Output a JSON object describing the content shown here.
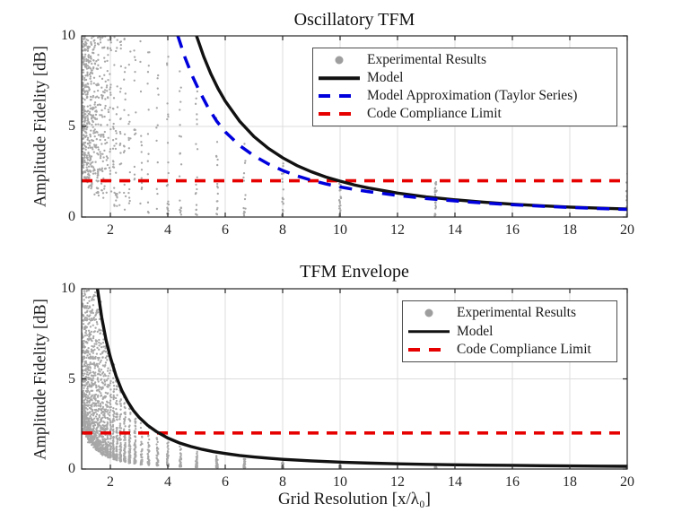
{
  "figure": {
    "background": "#ffffff",
    "scatter_color": "#9e9e9e",
    "grid_color": "#dcdcdc",
    "axis_color": "#262626"
  },
  "chart_data": [
    {
      "type": "scatter",
      "title": "Oscillatory TFM",
      "xlabel": "",
      "ylabel": "Amplitude Fidelity [dB]",
      "xlim": [
        1,
        20
      ],
      "ylim": [
        0,
        10
      ],
      "xticks": [
        2,
        4,
        6,
        8,
        10,
        12,
        14,
        16,
        18,
        20
      ],
      "yticks": [
        0,
        5,
        10
      ],
      "grid": true,
      "legend_position": "upper right",
      "legend": [
        {
          "marker": "dot",
          "color": "#9e9e9e",
          "label": "Experimental Results"
        },
        {
          "marker": "solid",
          "color": "#111111",
          "label": "Model"
        },
        {
          "marker": "dashed",
          "color": "#0000dd",
          "label": "Model Approximation (Taylor Series)"
        },
        {
          "marker": "dashed",
          "color": "#e60000",
          "label": "Code Compliance Limit"
        }
      ],
      "series": [
        {
          "name": "Code Compliance Limit",
          "style": "dashed",
          "dash": "12 9",
          "width": 3.6,
          "color": "#e60000",
          "points": [
            [
              1,
              2
            ],
            [
              20,
              2
            ]
          ]
        },
        {
          "name": "Model",
          "style": "solid",
          "width": 3.4,
          "color": "#111111",
          "points": [
            [
              5,
              10
            ],
            [
              5.25,
              8.86
            ],
            [
              5.5,
              7.9
            ],
            [
              5.75,
              7.09
            ],
            [
              6,
              6.4
            ],
            [
              6.5,
              5.29
            ],
            [
              7,
              4.44
            ],
            [
              7.5,
              3.79
            ],
            [
              8,
              3.27
            ],
            [
              8.5,
              2.84
            ],
            [
              9,
              2.5
            ],
            [
              9.5,
              2.21
            ],
            [
              10,
              1.98
            ],
            [
              10.5,
              1.77
            ],
            [
              11,
              1.6
            ],
            [
              12,
              1.32
            ],
            [
              13,
              1.11
            ],
            [
              14,
              0.95
            ],
            [
              15,
              0.82
            ],
            [
              16,
              0.71
            ],
            [
              17,
              0.62
            ],
            [
              18,
              0.55
            ],
            [
              19,
              0.49
            ],
            [
              20,
              0.44
            ]
          ]
        },
        {
          "name": "Model Approximation (Taylor Series)",
          "style": "dashed",
          "dash": "14 10",
          "width": 3.5,
          "color": "#0000dd",
          "points": [
            [
              4.35,
              10
            ],
            [
              4.6,
              8.8
            ],
            [
              4.85,
              7.8
            ],
            [
              5.1,
              6.95
            ],
            [
              5.4,
              6.05
            ],
            [
              5.7,
              5.3
            ],
            [
              6,
              4.7
            ],
            [
              6.5,
              3.95
            ],
            [
              7,
              3.38
            ],
            [
              7.5,
              2.93
            ],
            [
              8,
              2.57
            ],
            [
              8.5,
              2.27
            ],
            [
              9,
              2.03
            ],
            [
              9.5,
              1.83
            ],
            [
              10,
              1.66
            ],
            [
              10.5,
              1.52
            ],
            [
              11,
              1.4
            ],
            [
              12,
              1.19
            ],
            [
              13,
              1.02
            ],
            [
              14,
              0.89
            ],
            [
              15,
              0.77
            ],
            [
              16,
              0.68
            ],
            [
              17,
              0.6
            ],
            [
              18,
              0.53
            ],
            [
              19,
              0.47
            ],
            [
              20,
              0.42
            ]
          ]
        }
      ],
      "scatter": {
        "name": "Experimental Results",
        "color": "#9e9e9e",
        "seed": 1337,
        "note": "grid resolutions x = 40/n, n = 2..40; columns as [x, ymin, ymax, count, low_bias]",
        "columns": [
          [
            1.0,
            2.5,
            10,
            38,
            1
          ],
          [
            1.03,
            2.37,
            10,
            36,
            1
          ],
          [
            1.05,
            2.27,
            10,
            36,
            1
          ],
          [
            1.08,
            2.14,
            10,
            34,
            1
          ],
          [
            1.11,
            2.03,
            10,
            34,
            1
          ],
          [
            1.14,
            1.92,
            10,
            33,
            1
          ],
          [
            1.18,
            1.8,
            10,
            32,
            1
          ],
          [
            1.21,
            1.71,
            10,
            31,
            1
          ],
          [
            1.25,
            1.6,
            10,
            30,
            1
          ],
          [
            1.29,
            1.5,
            10,
            30,
            1
          ],
          [
            1.33,
            1.41,
            10,
            29,
            1
          ],
          [
            1.38,
            1.31,
            10,
            28,
            1
          ],
          [
            1.43,
            1.22,
            10,
            27,
            1
          ],
          [
            1.48,
            1.14,
            10,
            26,
            1
          ],
          [
            1.54,
            1.05,
            10,
            26,
            1
          ],
          [
            1.6,
            0.98,
            10,
            25,
            1
          ],
          [
            1.67,
            0.9,
            10,
            24,
            1
          ],
          [
            1.74,
            0.83,
            10,
            23,
            1
          ],
          [
            1.82,
            0.75,
            10,
            22,
            1
          ],
          [
            1.9,
            0.69,
            10,
            22,
            1
          ],
          [
            2.0,
            0.63,
            10,
            21,
            1
          ],
          [
            2.11,
            0.56,
            10,
            20,
            1
          ],
          [
            2.22,
            0.51,
            10,
            19,
            1
          ],
          [
            2.35,
            0.45,
            10,
            18,
            1
          ],
          [
            2.5,
            0.4,
            10,
            17,
            1
          ],
          [
            2.67,
            0.35,
            10,
            16,
            1
          ],
          [
            2.86,
            0.31,
            10,
            15,
            1
          ],
          [
            3.08,
            0.26,
            10,
            14,
            1
          ],
          [
            3.33,
            0.23,
            10,
            13,
            1
          ],
          [
            3.64,
            0.19,
            10,
            12,
            1
          ],
          [
            4.0,
            0.16,
            9.3,
            22,
            1.5
          ],
          [
            4.44,
            0.13,
            8.4,
            20,
            1.5
          ],
          [
            5.0,
            0.1,
            7.5,
            18,
            1.5
          ],
          [
            5.71,
            0.08,
            5.6,
            16,
            1.5
          ],
          [
            6.67,
            0.06,
            5.1,
            15,
            1.6
          ],
          [
            8.0,
            0.05,
            3.1,
            20,
            1.8
          ],
          [
            10.0,
            0.04,
            2.2,
            22,
            1.3
          ],
          [
            13.33,
            0.03,
            2.35,
            26,
            1.2
          ],
          [
            20.0,
            0.02,
            2.4,
            26,
            1.2
          ]
        ]
      },
      "compliance_limit": 2
    },
    {
      "type": "scatter",
      "title": "TFM Envelope",
      "xlabel": "Grid Resolution [x/λ₀]",
      "ylabel": "Amplitude Fidelity [dB]",
      "xlim": [
        1,
        20
      ],
      "ylim": [
        0,
        10
      ],
      "xticks": [
        2,
        4,
        6,
        8,
        10,
        12,
        14,
        16,
        18,
        20
      ],
      "yticks": [
        0,
        5,
        10
      ],
      "grid": true,
      "legend_position": "upper right",
      "legend": [
        {
          "marker": "dot",
          "color": "#9e9e9e",
          "label": "Experimental Results"
        },
        {
          "marker": "solid",
          "color": "#111111",
          "label": "Model"
        },
        {
          "marker": "dashed",
          "color": "#e60000",
          "label": "Code Compliance Limit"
        }
      ],
      "series": [
        {
          "name": "Code Compliance Limit",
          "style": "dashed",
          "dash": "12 9",
          "width": 3.6,
          "color": "#e60000",
          "points": [
            [
              1,
              2
            ],
            [
              20,
              2
            ]
          ]
        },
        {
          "name": "Model",
          "style": "solid",
          "width": 3.4,
          "color": "#111111",
          "points": [
            [
              1.55,
              10
            ],
            [
              1.7,
              8.4
            ],
            [
              1.85,
              7.15
            ],
            [
              2,
              6.2
            ],
            [
              2.2,
              5.15
            ],
            [
              2.4,
              4.35
            ],
            [
              2.6,
              3.75
            ],
            [
              2.8,
              3.25
            ],
            [
              3,
              2.87
            ],
            [
              3.3,
              2.42
            ],
            [
              3.6,
              2.08
            ],
            [
              4,
              1.72
            ],
            [
              4.4,
              1.45
            ],
            [
              4.8,
              1.25
            ],
            [
              5.2,
              1.09
            ],
            [
              5.6,
              0.96
            ],
            [
              6,
              0.86
            ],
            [
              6.5,
              0.75
            ],
            [
              7,
              0.67
            ],
            [
              7.5,
              0.6
            ],
            [
              8,
              0.54
            ],
            [
              9,
              0.45
            ],
            [
              10,
              0.38
            ],
            [
              11,
              0.33
            ],
            [
              12,
              0.29
            ],
            [
              13,
              0.26
            ],
            [
              14,
              0.235
            ],
            [
              15,
              0.215
            ],
            [
              16,
              0.2
            ],
            [
              17,
              0.185
            ],
            [
              18,
              0.17
            ],
            [
              19,
              0.16
            ],
            [
              20,
              0.15
            ]
          ]
        }
      ],
      "scatter": {
        "name": "Experimental Results",
        "color": "#9e9e9e",
        "seed": 2024,
        "note": "decaying bands y = A/x^2 sampled at grid resolutions x = 40/n",
        "x_columns": [
          1.0,
          1.03,
          1.05,
          1.08,
          1.11,
          1.14,
          1.18,
          1.21,
          1.25,
          1.29,
          1.33,
          1.38,
          1.43,
          1.48,
          1.54,
          1.6,
          1.67,
          1.74,
          1.82,
          1.9,
          2.0,
          2.11,
          2.22,
          2.35,
          2.5,
          2.67,
          2.86,
          3.08,
          3.33,
          3.64,
          4.0,
          4.44,
          5.0,
          5.71,
          6.67,
          8.0,
          10.0,
          13.33,
          20.0
        ],
        "amplitudes": [
          2.5,
          2.65,
          2.8,
          2.95,
          3.1,
          3.25,
          3.4,
          3.6,
          3.8,
          4.0,
          4.3,
          4.7,
          5.1,
          5.6,
          6.1,
          6.6,
          7.1,
          7.7,
          8.3,
          9.0,
          9.6,
          10.3,
          11.0,
          11.8,
          12.6,
          13.5,
          14.5,
          15.6,
          16.8,
          18.1,
          19.5,
          21.0,
          22.5,
          24.0
        ],
        "exponent": 2,
        "jitter": 0.16
      },
      "compliance_limit": 2
    }
  ]
}
